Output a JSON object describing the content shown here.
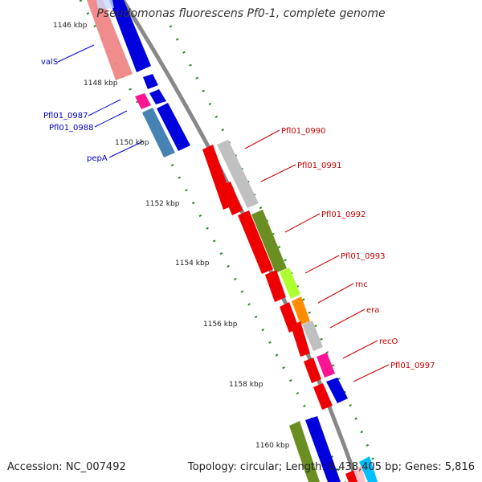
{
  "title": "Pseudomonas fluorescens Pf0-1, complete genome",
  "footer": {
    "accession": "Accession: NC_007492",
    "topology": "Topology: circular; Length: 6,438,405 bp; Genes: 5,816"
  },
  "ticks": [
    "1146 kbp",
    "1148 kbp",
    "1150 kbp",
    "1152 kbp",
    "1154 kbp",
    "1156 kbp",
    "1158 kbp",
    "1160 kbp"
  ],
  "left_genes": [
    "valS",
    "Pfl01_0987",
    "Pfl01_0988",
    "pepA"
  ],
  "right_genes": [
    "Pfl01_0990",
    "Pfl01_0991",
    "Pfl01_0992",
    "Pfl01_0993",
    "rnc",
    "era",
    "recO",
    "Pfl01_0997"
  ],
  "colors": {
    "left_label": "#0000cc",
    "right_label": "#cc0000",
    "backbone": "#888888",
    "ruler_dots": "#228b22"
  }
}
